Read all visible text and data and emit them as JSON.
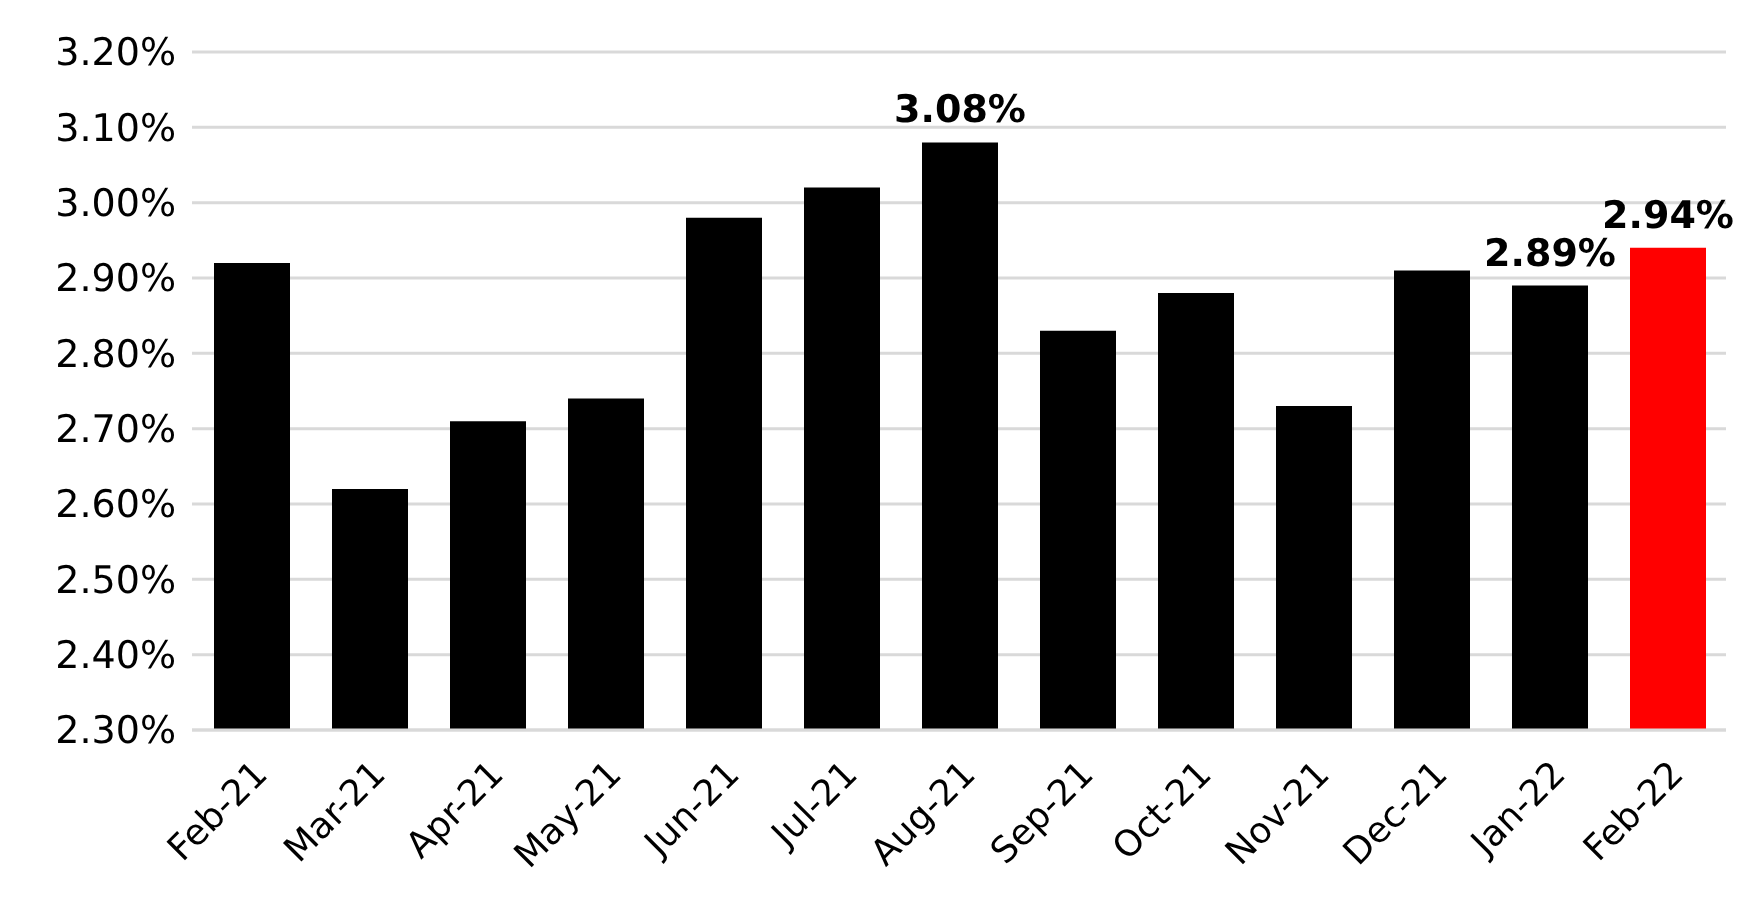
{
  "chart_data": {
    "type": "bar",
    "categories": [
      "Feb-21",
      "Mar-21",
      "Apr-21",
      "May-21",
      "Jun-21",
      "Jul-21",
      "Aug-21",
      "Sep-21",
      "Oct-21",
      "Nov-21",
      "Dec-21",
      "Jan-22",
      "Feb-22"
    ],
    "values": [
      2.92,
      2.62,
      2.71,
      2.74,
      2.98,
      3.02,
      3.08,
      2.83,
      2.88,
      2.73,
      2.91,
      2.89,
      2.94
    ],
    "colors": [
      "#000000",
      "#000000",
      "#000000",
      "#000000",
      "#000000",
      "#000000",
      "#000000",
      "#000000",
      "#000000",
      "#000000",
      "#000000",
      "#000000",
      "#ff0000"
    ],
    "value_labels": [
      null,
      null,
      null,
      null,
      null,
      null,
      "3.08%",
      null,
      null,
      null,
      null,
      "2.89%",
      "2.94%"
    ],
    "ylim": [
      2.3,
      3.2
    ],
    "yticks": [
      {
        "value": 2.3,
        "label": "2.30%"
      },
      {
        "value": 2.4,
        "label": "2.40%"
      },
      {
        "value": 2.5,
        "label": "2.50%"
      },
      {
        "value": 2.6,
        "label": "2.60%"
      },
      {
        "value": 2.7,
        "label": "2.70%"
      },
      {
        "value": 2.8,
        "label": "2.80%"
      },
      {
        "value": 2.9,
        "label": "2.90%"
      },
      {
        "value": 3.0,
        "label": "3.00%"
      },
      {
        "value": 3.1,
        "label": "3.10%"
      },
      {
        "value": 3.2,
        "label": "3.20%"
      }
    ],
    "grid": "y"
  }
}
